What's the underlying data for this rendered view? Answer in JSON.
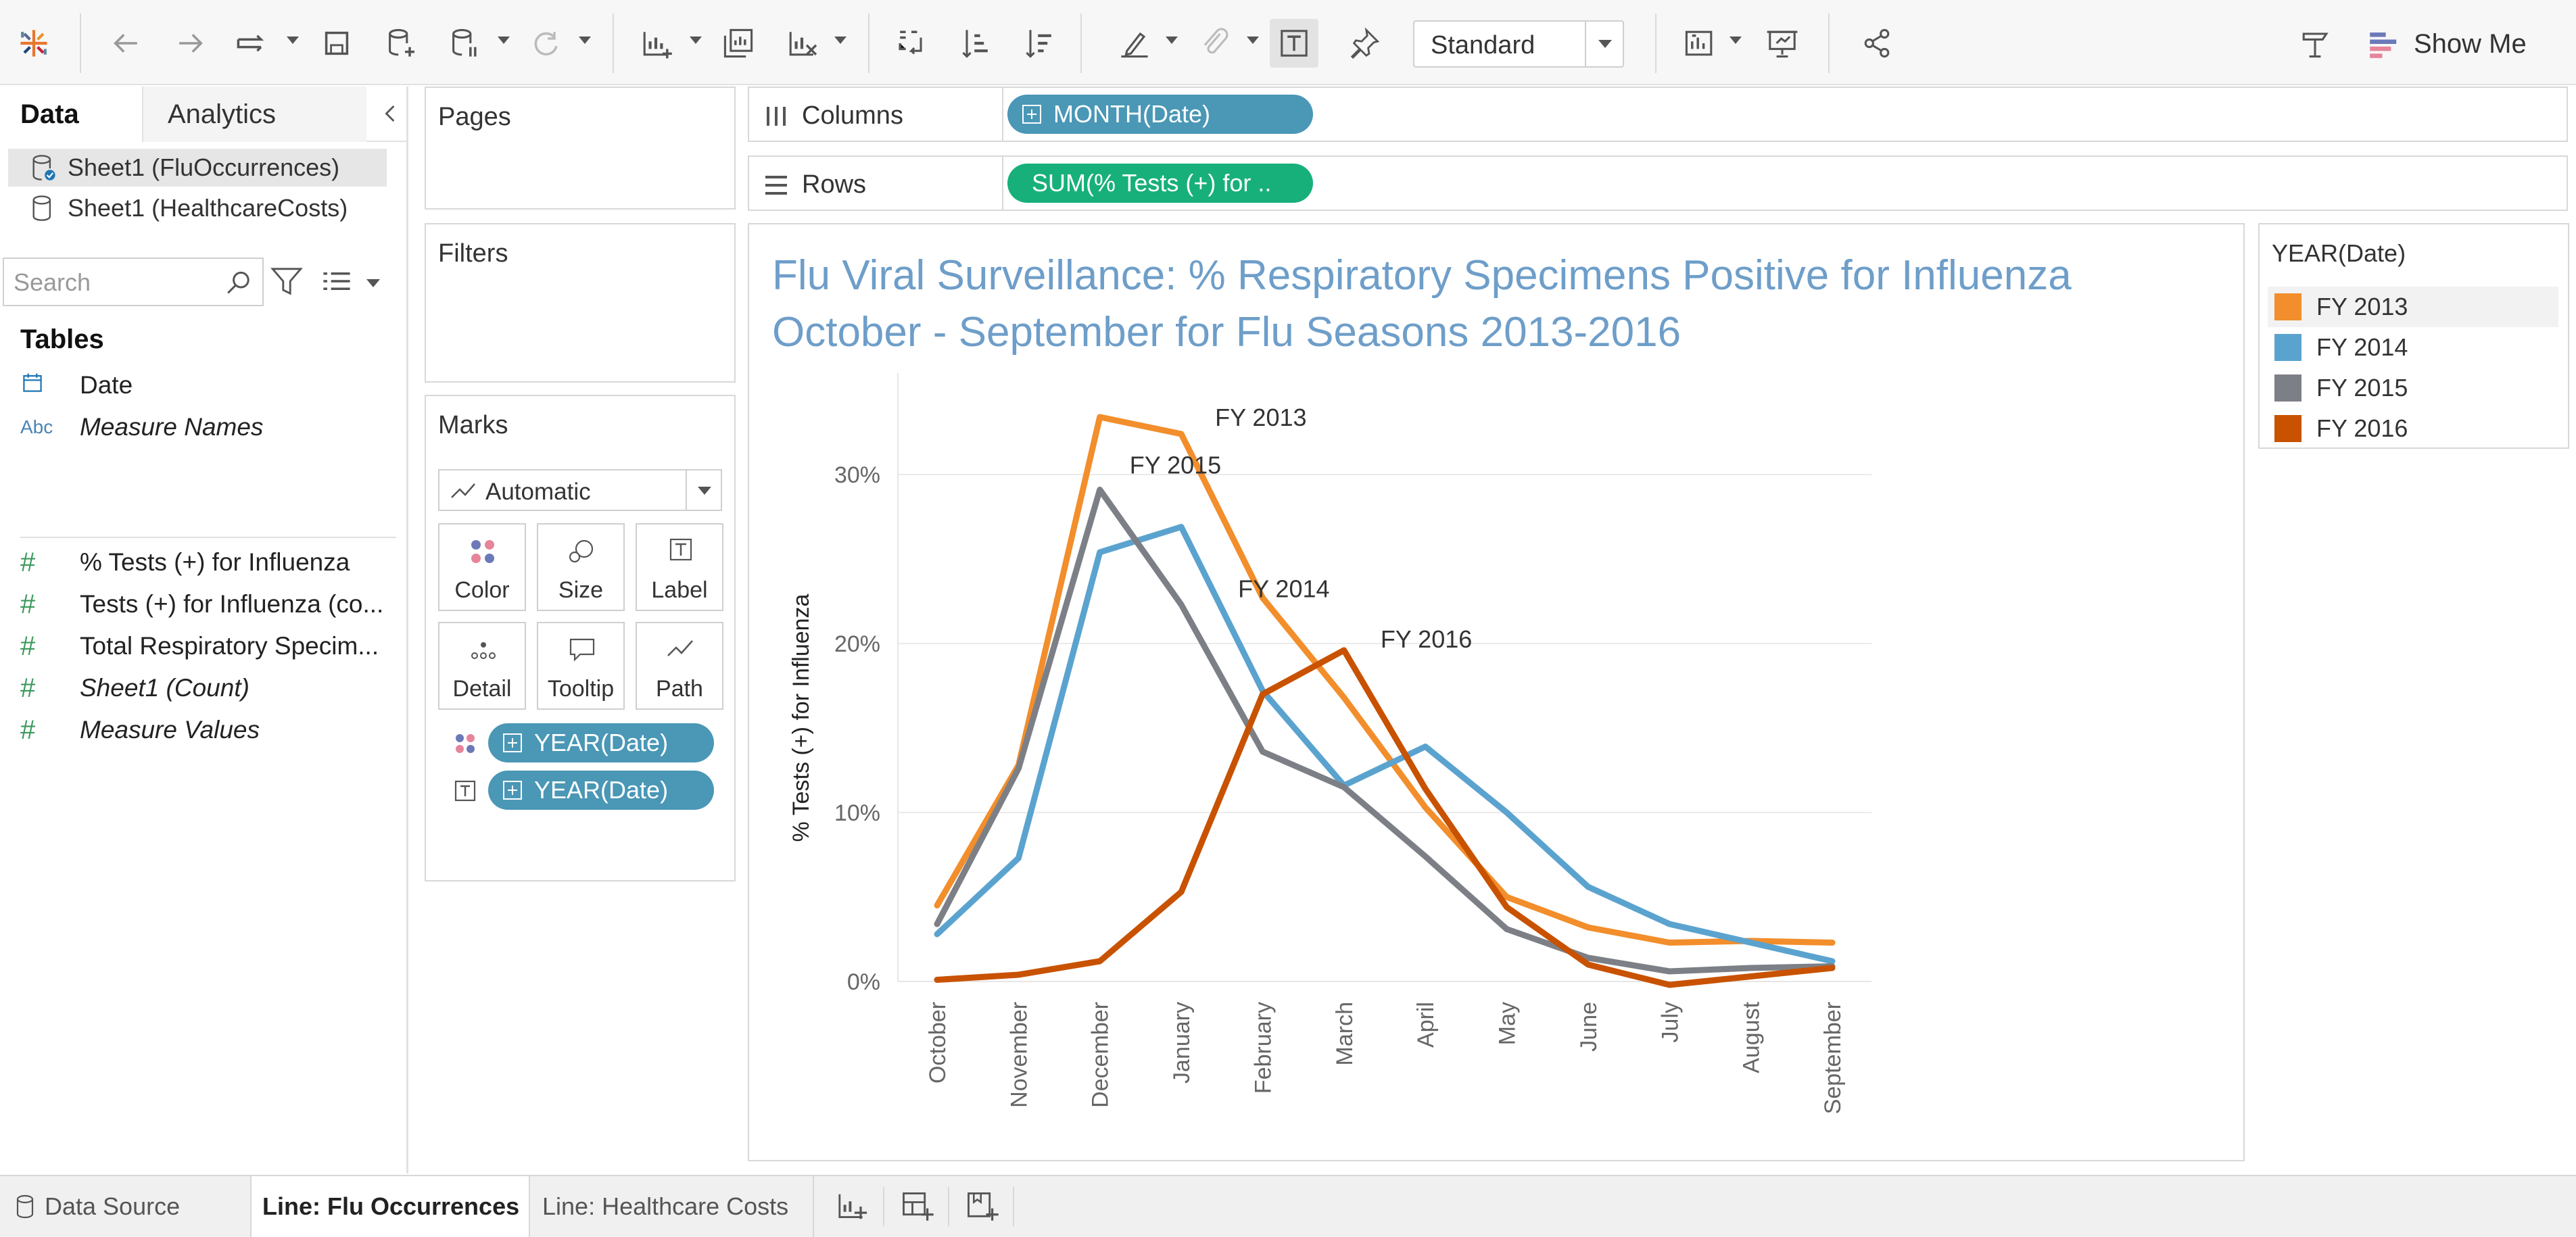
{
  "toolbar": {
    "fit_value": "Standard",
    "show_me_label": "Show Me",
    "icons": [
      "tableau-logo-icon",
      "undo-icon",
      "redo-icon",
      "replay-icon",
      "save-icon",
      "new-datasource-icon",
      "pause-updates-icon",
      "refresh-icon",
      "new-worksheet-icon",
      "duplicate-icon",
      "clear-sheet-icon",
      "swap-icon",
      "sort-ascending-icon",
      "sort-descending-icon",
      "highlight-icon",
      "group-icon",
      "show-labels-icon",
      "pin-icon",
      "show-cards-icon",
      "presentation-icon",
      "share-icon",
      "tooltip-icon",
      "show-me-icon"
    ]
  },
  "data_pane": {
    "tabs": {
      "data": "Data",
      "analytics": "Analytics"
    },
    "datasources": [
      {
        "label": "Sheet1 (FluOccurrences)",
        "selected": true
      },
      {
        "label": "Sheet1 (HealthcareCosts)",
        "selected": false
      }
    ],
    "search_placeholder": "Search",
    "tables_heading": "Tables",
    "fields": [
      {
        "type": "date",
        "label": "Date",
        "italic": false
      },
      {
        "type": "Abc",
        "label": "Measure Names",
        "italic": true
      },
      {
        "type": "#",
        "label": "% Tests (+) for Influenza",
        "italic": false
      },
      {
        "type": "#",
        "label": "Tests (+) for Influenza (co...",
        "italic": false
      },
      {
        "type": "#",
        "label": "Total Respiratory Specim...",
        "italic": false
      },
      {
        "type": "#",
        "label": "Sheet1 (Count)",
        "italic": true
      },
      {
        "type": "#",
        "label": "Measure Values",
        "italic": true
      }
    ]
  },
  "cards": {
    "pages": "Pages",
    "filters": "Filters",
    "marks": {
      "title": "Marks",
      "type": "Automatic",
      "buttons": [
        "Color",
        "Size",
        "Label",
        "Detail",
        "Tooltip",
        "Path"
      ],
      "pills": [
        "YEAR(Date)",
        "YEAR(Date)"
      ]
    }
  },
  "shelves": {
    "columns_label": "Columns",
    "columns_pill": "MONTH(Date)",
    "rows_label": "Rows",
    "rows_pill": "SUM(% Tests (+) for .."
  },
  "view": {
    "title_line1": "Flu Viral Surveillance: % Respiratory Specimens Positive for Influenza",
    "title_line2": "October - September for Flu Seasons 2013-2016"
  },
  "legend": {
    "title": "YEAR(Date)",
    "items": [
      {
        "label": "FY 2013",
        "color": "#f28e2b"
      },
      {
        "label": "FY 2014",
        "color": "#5ba3cf"
      },
      {
        "label": "FY 2015",
        "color": "#7c8086"
      },
      {
        "label": "FY 2016",
        "color": "#c85200"
      }
    ]
  },
  "bottom_bar": {
    "data_source": "Data Source",
    "sheets": [
      {
        "label": "Line: Flu Occurrences",
        "active": true
      },
      {
        "label": "Line: Healthcare Costs",
        "active": false
      }
    ]
  },
  "chart_data": {
    "type": "line",
    "title": "",
    "xlabel": "",
    "ylabel": "% Tests (+) for Influenza",
    "categories": [
      "October",
      "November",
      "December",
      "January",
      "February",
      "March",
      "April",
      "May",
      "June",
      "July",
      "August",
      "September"
    ],
    "ylim": [
      0,
      36
    ],
    "yticks": [
      0,
      10,
      20,
      30
    ],
    "ytick_labels": [
      "0%",
      "10%",
      "20%",
      "30%"
    ],
    "grid": true,
    "series": [
      {
        "name": "FY 2013",
        "color": "#f28e2b",
        "values": [
          4.5,
          12.8,
          33.4,
          32.4,
          22.7,
          16.8,
          10.3,
          5.0,
          3.2,
          2.3,
          2.4,
          2.3
        ]
      },
      {
        "name": "FY 2014",
        "color": "#5ba3cf",
        "values": [
          2.8,
          7.3,
          25.4,
          26.9,
          17.2,
          11.6,
          13.9,
          10.0,
          5.6,
          3.4,
          2.3,
          1.2
        ]
      },
      {
        "name": "FY 2015",
        "color": "#7c8086",
        "values": [
          3.4,
          12.6,
          29.1,
          22.3,
          13.6,
          11.5,
          7.4,
          3.1,
          1.4,
          0.6,
          0.8,
          0.9
        ]
      },
      {
        "name": "FY 2016",
        "color": "#c85200",
        "values": [
          0.1,
          0.4,
          1.2,
          5.3,
          17.0,
          19.6,
          11.4,
          4.4,
          1.0,
          -0.2,
          0.3,
          0.8
        ]
      }
    ],
    "annotations": [
      {
        "text": "FY 2013",
        "series": "FY 2013",
        "category": "January"
      },
      {
        "text": "FY 2015",
        "series": "FY 2015",
        "category": "December"
      },
      {
        "text": "FY 2014",
        "series": "FY 2014",
        "category": "January"
      },
      {
        "text": "FY 2016",
        "series": "FY 2016",
        "category": "March"
      }
    ]
  }
}
